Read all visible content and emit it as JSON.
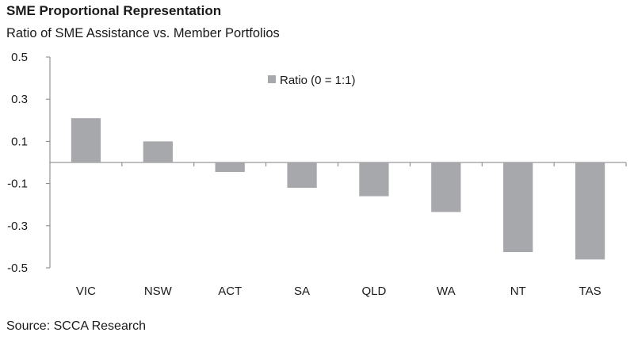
{
  "chart_title": "SME Proportional Representation",
  "chart_subtitle": "Ratio of SME Assistance vs. Member Portfolios",
  "source": "Source: SCCA Research",
  "chart_data": {
    "type": "bar",
    "title": "SME Proportional Representation",
    "subtitle": "Ratio of SME Assistance vs. Member Portfolios",
    "categories": [
      "VIC",
      "NSW",
      "ACT",
      "SA",
      "QLD",
      "WA",
      "NT",
      "TAS"
    ],
    "series": [
      {
        "name": "Ratio (0 = 1:1)",
        "values": [
          0.21,
          0.1,
          -0.045,
          -0.12,
          -0.16,
          -0.235,
          -0.425,
          -0.46
        ],
        "color": "#a6a8ab"
      }
    ],
    "ylim": [
      -0.5,
      0.5
    ],
    "yticks": [
      0.5,
      0.3,
      0.1,
      -0.1,
      -0.3,
      -0.5
    ],
    "ytick_labels": [
      "0.5",
      "0.3",
      "0.1",
      "-0.1",
      "-0.3",
      "-0.5"
    ],
    "xlabel": "",
    "ylabel": "",
    "grid": false,
    "legend_position": "top-center"
  }
}
